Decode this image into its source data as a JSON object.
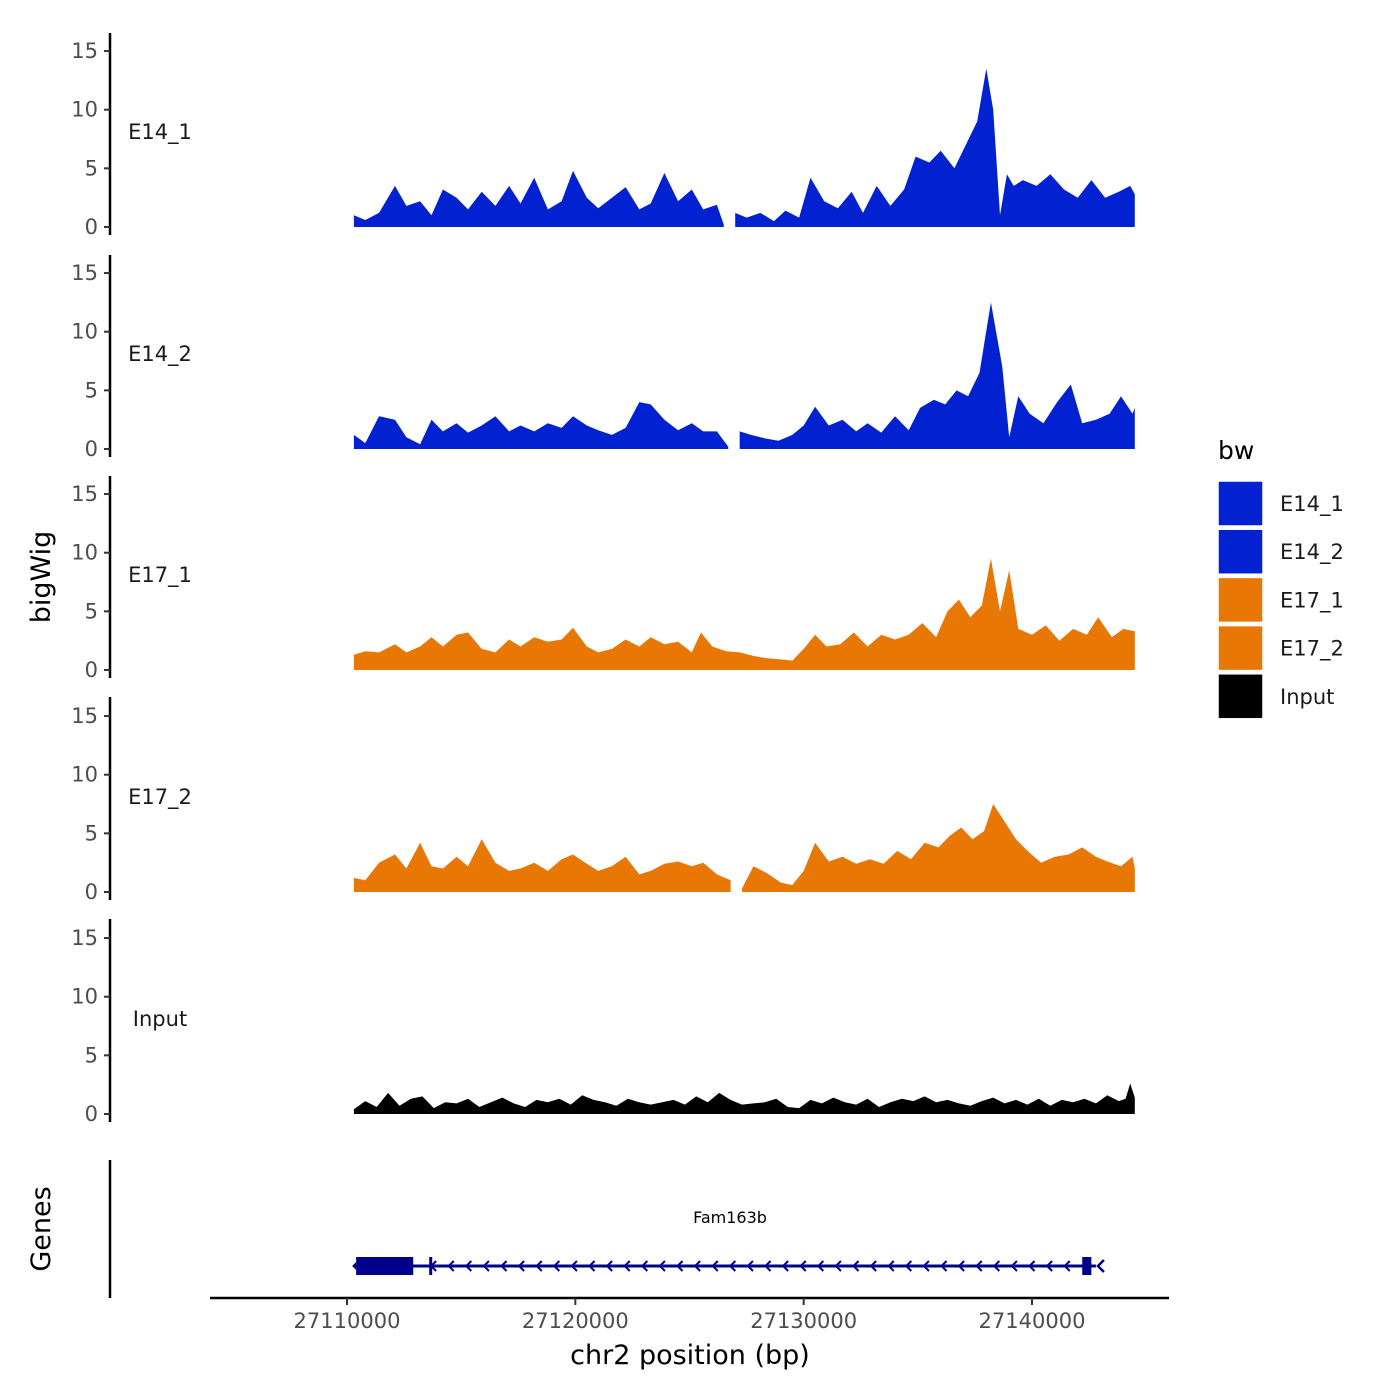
{
  "chart_data": {
    "type": "area",
    "ylabel": "bigWig",
    "xlabel": "chr2 position (bp)",
    "xlim": [
      27104000,
      27146000
    ],
    "ylim": [
      0,
      16
    ],
    "y_ticks": [
      0,
      5,
      10,
      15
    ],
    "y_tick_labels": [
      "0",
      "5",
      "10",
      "15"
    ],
    "x_ticks": [
      27110000,
      27120000,
      27130000,
      27140000
    ],
    "x_tick_labels": [
      "27110000",
      "27120000",
      "27130000",
      "27140000"
    ],
    "grid": false,
    "legend": {
      "title": "bw",
      "placement": "right",
      "entries": [
        {
          "label": "E14_1",
          "color": "#0222D1"
        },
        {
          "label": "E14_2",
          "color": "#0222D1"
        },
        {
          "label": "E17_1",
          "color": "#E87704"
        },
        {
          "label": "E17_2",
          "color": "#E87704"
        },
        {
          "label": "Input",
          "color": "#000000"
        }
      ]
    },
    "series": [
      {
        "name": "E14_1",
        "color": "#0222D1",
        "x": [
          27110300,
          27110800,
          27111400,
          27112100,
          27112600,
          27113200,
          27113700,
          27114200,
          27114800,
          27115300,
          27115900,
          27116500,
          27117100,
          27117600,
          27118200,
          27118800,
          27119400,
          27119900,
          27120500,
          27121000,
          27121600,
          27122200,
          27122800,
          27123300,
          27123900,
          27124500,
          27125100,
          27125600,
          27126200,
          27126500,
          27127000,
          27127500,
          27128100,
          27128700,
          27129200,
          27129800,
          27130300,
          27130900,
          27131500,
          27132100,
          27132600,
          27133200,
          27133800,
          27134400,
          27134900,
          27135500,
          27136000,
          27136600,
          27137100,
          27137600,
          27138000,
          27138300,
          27138600,
          27138900,
          27139200,
          27139600,
          27140200,
          27140800,
          27141400,
          27142000,
          27142600,
          27143200,
          27143800,
          27144300,
          27144500
        ],
        "values": [
          1.0,
          0.6,
          1.2,
          3.5,
          1.8,
          2.2,
          1.0,
          3.2,
          2.5,
          1.5,
          3.0,
          1.8,
          3.5,
          2.0,
          4.2,
          1.5,
          2.2,
          4.8,
          2.5,
          1.6,
          2.5,
          3.4,
          1.5,
          2.0,
          4.6,
          2.2,
          3.2,
          1.5,
          1.9,
          0.2,
          1.2,
          0.8,
          1.2,
          0.5,
          1.4,
          0.8,
          4.2,
          2.2,
          1.6,
          3.0,
          1.2,
          3.5,
          1.8,
          3.2,
          6.0,
          5.5,
          6.5,
          5.0,
          7.0,
          9.0,
          13.5,
          10.0,
          1.0,
          4.5,
          3.5,
          4.0,
          3.5,
          4.5,
          3.2,
          2.5,
          4.0,
          2.5,
          3.0,
          3.5,
          2.8
        ]
      },
      {
        "name": "E14_2",
        "color": "#0222D1",
        "x": [
          27110300,
          27110800,
          27111400,
          27112100,
          27112600,
          27113200,
          27113700,
          27114200,
          27114800,
          27115300,
          27115900,
          27116500,
          27117100,
          27117600,
          27118200,
          27118800,
          27119400,
          27119900,
          27120500,
          27121000,
          27121600,
          27122200,
          27122800,
          27123300,
          27123900,
          27124500,
          27125100,
          27125600,
          27126200,
          27126700,
          27127200,
          27127700,
          27128300,
          27128900,
          27129500,
          27130000,
          27130500,
          27131100,
          27131700,
          27132300,
          27132800,
          27133400,
          27134000,
          27134600,
          27135100,
          27135700,
          27136200,
          27136700,
          27137200,
          27137700,
          27138200,
          27138700,
          27139000,
          27139400,
          27139900,
          27140500,
          27141100,
          27141700,
          27142200,
          27142800,
          27143400,
          27143900,
          27144400,
          27144500
        ],
        "values": [
          1.2,
          0.5,
          2.8,
          2.5,
          1.0,
          0.4,
          2.5,
          1.5,
          2.2,
          1.4,
          2.0,
          2.8,
          1.5,
          2.0,
          1.5,
          2.2,
          1.8,
          2.8,
          2.0,
          1.6,
          1.2,
          1.8,
          4.0,
          3.8,
          2.5,
          1.6,
          2.2,
          1.5,
          1.5,
          0.2,
          1.5,
          1.2,
          0.9,
          0.7,
          1.2,
          2.0,
          3.6,
          2.0,
          2.5,
          1.5,
          2.2,
          1.4,
          2.8,
          1.6,
          3.5,
          4.2,
          3.8,
          5.0,
          4.5,
          6.5,
          12.5,
          7.0,
          1.0,
          4.5,
          3.0,
          2.2,
          4.0,
          5.5,
          2.2,
          2.5,
          3.0,
          4.5,
          3.0,
          3.5
        ]
      },
      {
        "name": "E17_1",
        "color": "#E87704",
        "x": [
          27110300,
          27110800,
          27111400,
          27112100,
          27112600,
          27113200,
          27113700,
          27114200,
          27114800,
          27115300,
          27115900,
          27116500,
          27117100,
          27117600,
          27118200,
          27118800,
          27119400,
          27119900,
          27120500,
          27121000,
          27121600,
          27122200,
          27122800,
          27123300,
          27123900,
          27124500,
          27125100,
          27125500,
          27126000,
          27126600,
          27127200,
          27127800,
          27128400,
          27129000,
          27129500,
          27130000,
          27130500,
          27131000,
          27131600,
          27132200,
          27132800,
          27133400,
          27134000,
          27134600,
          27135200,
          27135800,
          27136300,
          27136800,
          27137300,
          27137800,
          27138200,
          27138600,
          27139000,
          27139400,
          27140000,
          27140600,
          27141200,
          27141800,
          27142400,
          27142900,
          27143500,
          27144000,
          27144500
        ],
        "values": [
          1.3,
          1.6,
          1.5,
          2.2,
          1.5,
          2.0,
          2.8,
          2.0,
          3.0,
          3.2,
          1.8,
          1.5,
          2.6,
          2.0,
          2.8,
          2.4,
          2.6,
          3.6,
          2.0,
          1.5,
          1.8,
          2.6,
          2.0,
          2.8,
          2.2,
          2.4,
          1.5,
          3.2,
          2.0,
          1.6,
          1.5,
          1.2,
          1.0,
          0.9,
          0.8,
          1.8,
          3.0,
          2.0,
          2.2,
          3.2,
          2.0,
          3.0,
          2.6,
          3.0,
          4.0,
          2.8,
          5.0,
          6.0,
          4.5,
          5.5,
          9.5,
          5.0,
          8.5,
          3.5,
          3.0,
          3.8,
          2.5,
          3.5,
          3.0,
          4.5,
          2.8,
          3.5,
          3.3
        ]
      },
      {
        "name": "E17_2",
        "color": "#E87704",
        "x": [
          27110300,
          27110800,
          27111400,
          27112100,
          27112600,
          27113200,
          27113700,
          27114200,
          27114800,
          27115300,
          27115900,
          27116500,
          27117100,
          27117600,
          27118200,
          27118800,
          27119400,
          27119900,
          27120500,
          27121000,
          27121600,
          27122200,
          27122800,
          27123300,
          27123900,
          27124500,
          27125100,
          27125600,
          27126200,
          27126800,
          27127300,
          27127800,
          27128400,
          27129000,
          27129500,
          27130000,
          27130500,
          27131100,
          27131700,
          27132300,
          27132900,
          27133500,
          27134100,
          27134700,
          27135300,
          27135900,
          27136400,
          27136900,
          27137400,
          27137900,
          27138300,
          27138800,
          27139300,
          27139800,
          27140400,
          27141000,
          27141600,
          27142200,
          27142800,
          27143300,
          27143900,
          27144400,
          27144500
        ],
        "values": [
          1.2,
          1.0,
          2.5,
          3.2,
          2.0,
          4.2,
          2.2,
          2.0,
          3.0,
          2.2,
          4.5,
          2.5,
          1.8,
          2.0,
          2.5,
          1.8,
          2.8,
          3.2,
          2.4,
          1.8,
          2.2,
          3.0,
          1.5,
          1.8,
          2.4,
          2.6,
          2.2,
          2.5,
          1.5,
          1.0,
          0.3,
          2.2,
          1.6,
          0.8,
          0.6,
          1.8,
          4.2,
          2.6,
          3.0,
          2.4,
          2.8,
          2.4,
          3.5,
          2.8,
          4.2,
          3.8,
          4.8,
          5.5,
          4.5,
          5.2,
          7.5,
          6.0,
          4.5,
          3.5,
          2.5,
          3.0,
          3.2,
          3.8,
          3.0,
          2.6,
          2.2,
          3.0,
          2.0
        ]
      },
      {
        "name": "Input",
        "color": "#000000",
        "x": [
          27110300,
          27110800,
          27111300,
          27111800,
          27112300,
          27112800,
          27113300,
          27113800,
          27114300,
          27114800,
          27115300,
          27115800,
          27116300,
          27116800,
          27117300,
          27117800,
          27118300,
          27118800,
          27119300,
          27119800,
          27120300,
          27120800,
          27121300,
          27121800,
          27122300,
          27122800,
          27123300,
          27123800,
          27124300,
          27124800,
          27125300,
          27125800,
          27126300,
          27126800,
          27127300,
          27127800,
          27128300,
          27128800,
          27129300,
          27129800,
          27130300,
          27130800,
          27131300,
          27131800,
          27132300,
          27132800,
          27133300,
          27133800,
          27134300,
          27134800,
          27135300,
          27135800,
          27136300,
          27136800,
          27137300,
          27137800,
          27138300,
          27138800,
          27139300,
          27139800,
          27140300,
          27140800,
          27141300,
          27141800,
          27142300,
          27142800,
          27143300,
          27143800,
          27144100,
          27144300,
          27144500
        ],
        "values": [
          0.4,
          1.1,
          0.6,
          1.8,
          0.7,
          1.3,
          1.5,
          0.5,
          1.0,
          0.9,
          1.3,
          0.6,
          1.0,
          1.4,
          0.9,
          0.6,
          1.2,
          1.0,
          1.3,
          0.8,
          1.6,
          1.2,
          1.0,
          0.7,
          1.3,
          1.0,
          0.8,
          1.0,
          1.2,
          0.8,
          1.5,
          1.0,
          1.8,
          1.2,
          0.8,
          0.9,
          1.0,
          1.3,
          0.6,
          0.5,
          1.2,
          0.9,
          1.4,
          1.0,
          0.8,
          1.3,
          0.6,
          1.0,
          1.3,
          1.1,
          1.5,
          1.0,
          1.2,
          0.9,
          0.7,
          1.1,
          1.4,
          0.9,
          1.2,
          0.8,
          1.3,
          0.7,
          1.2,
          1.0,
          1.3,
          0.9,
          1.6,
          1.1,
          1.3,
          2.6,
          1.4
        ]
      }
    ],
    "gaps": {
      "E14_1": [
        [
          27126500,
          27126500
        ]
      ],
      "E14_2": [
        [
          27126700,
          27127200
        ]
      ],
      "E17_2": [
        [
          27126800,
          27127300
        ]
      ]
    },
    "genes": {
      "track_label": "Genes",
      "items": [
        {
          "name": "Fam163b",
          "strand": "-",
          "start": 27110400,
          "end": 27142800,
          "exons": [
            [
              27110400,
              27112900
            ],
            [
              27113600,
              27113700
            ],
            [
              27142200,
              27142600
            ]
          ]
        }
      ]
    }
  }
}
